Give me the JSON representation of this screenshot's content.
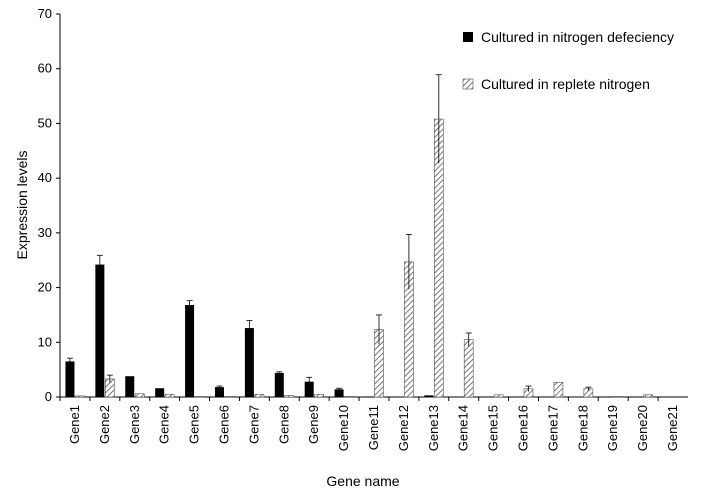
{
  "chart_data": {
    "type": "bar",
    "xlabel": "Gene name",
    "ylabel": "Expression levels",
    "ylim": [
      0,
      70
    ],
    "yticks": [
      0,
      10,
      20,
      30,
      40,
      50,
      60,
      70
    ],
    "grid": false,
    "legend_position": "top-right",
    "categories": [
      "Gene1",
      "Gene2",
      "Gene3",
      "Gene4",
      "Gene5",
      "Gene6",
      "Gene7",
      "Gene8",
      "Gene9",
      "Gene10",
      "Gene11",
      "Gene12",
      "Gene13",
      "Gene14",
      "Gene15",
      "Gene16",
      "Gene17",
      "Gene18",
      "Gene19",
      "Gene20",
      "Gene21"
    ],
    "series": [
      {
        "name": "Cultured in nitrogen defeciency",
        "fill": "solid",
        "color": "#000000",
        "values": [
          6.5,
          24.2,
          3.8,
          1.6,
          16.8,
          1.8,
          12.6,
          4.4,
          2.8,
          1.4,
          0.1,
          0.0,
          0.3,
          0.0,
          0.0,
          0.0,
          0.0,
          0.0,
          0.0,
          0.0,
          0.0
        ],
        "errors": [
          0.6,
          1.7,
          0.0,
          0.0,
          0.8,
          0.2,
          1.4,
          0.2,
          0.8,
          0.2,
          0.0,
          0.0,
          0.0,
          0.0,
          0.0,
          0.0,
          0.0,
          0.0,
          0.0,
          0.0,
          0.0
        ]
      },
      {
        "name": "Cultured in replete nitrogen",
        "fill": "hatched",
        "color": "#555555",
        "values": [
          0.2,
          3.3,
          0.6,
          0.5,
          0.1,
          0.1,
          0.5,
          0.3,
          0.5,
          0.1,
          12.3,
          24.7,
          50.8,
          10.5,
          0.4,
          1.5,
          2.7,
          1.5,
          0.1,
          0.4,
          0.0
        ],
        "errors": [
          0.0,
          0.7,
          0.0,
          0.0,
          0.0,
          0.0,
          0.0,
          0.0,
          0.0,
          0.0,
          2.7,
          5.0,
          8.1,
          1.2,
          0.0,
          0.5,
          0.0,
          0.3,
          0.0,
          0.0,
          0.0
        ]
      }
    ]
  }
}
